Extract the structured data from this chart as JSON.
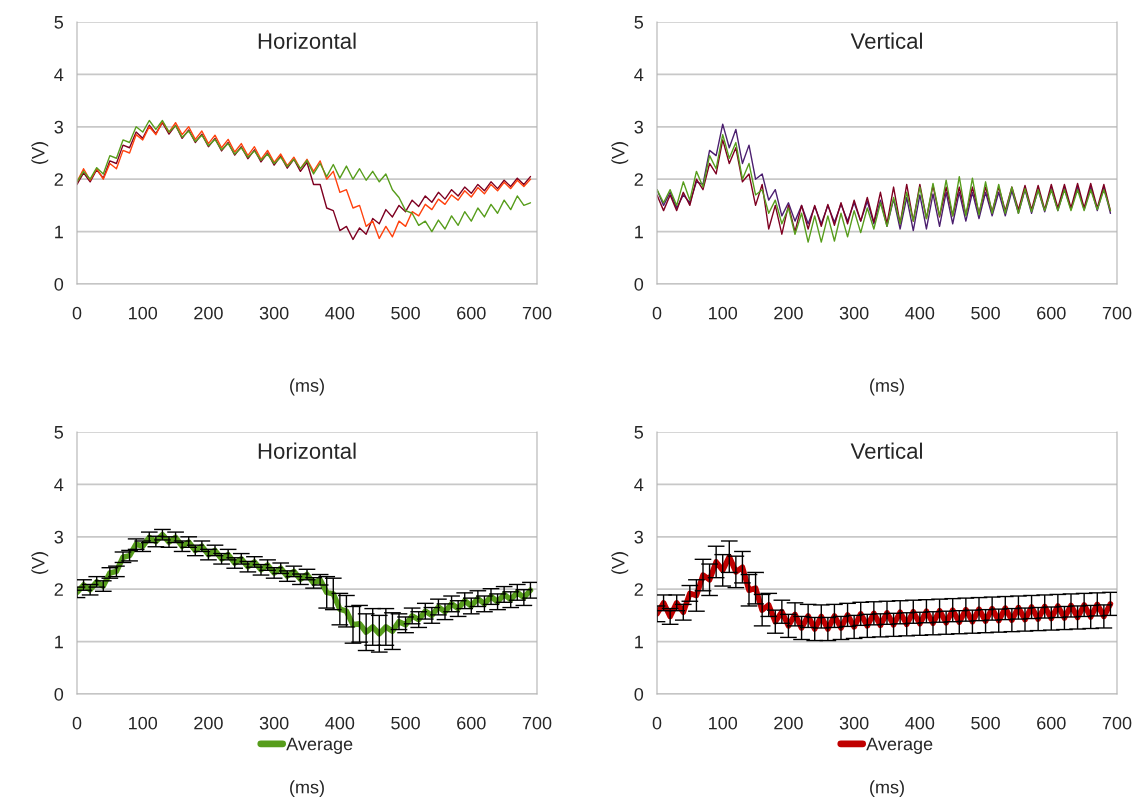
{
  "chart_data": [
    {
      "type": "line",
      "title": "Horizontal",
      "xlabel": "(ms)",
      "ylabel": "(V)",
      "xlim": [
        0,
        700
      ],
      "xticks": [
        0,
        100,
        200,
        300,
        400,
        500,
        600,
        700
      ],
      "ylim": [
        0,
        5
      ],
      "yticks": [
        0,
        1,
        2,
        3,
        4,
        5
      ],
      "grid": "y",
      "legend": false,
      "x": [
        0,
        10,
        20,
        30,
        40,
        50,
        60,
        70,
        80,
        90,
        100,
        110,
        120,
        130,
        140,
        150,
        160,
        170,
        180,
        190,
        200,
        210,
        220,
        230,
        240,
        250,
        260,
        270,
        280,
        290,
        300,
        310,
        320,
        330,
        340,
        350,
        360,
        370,
        380,
        390,
        400,
        410,
        420,
        430,
        440,
        450,
        460,
        470,
        480,
        490,
        500,
        510,
        520,
        530,
        540,
        550,
        560,
        570,
        580,
        590,
        600,
        610,
        620,
        630,
        640,
        650,
        660,
        670,
        680,
        690
      ],
      "series": [
        {
          "color": "#7e0021",
          "values": [
            1.9,
            2.12,
            1.95,
            2.18,
            2.02,
            2.35,
            2.3,
            2.65,
            2.6,
            2.9,
            2.78,
            3.03,
            2.87,
            3.08,
            2.86,
            3.03,
            2.78,
            2.94,
            2.7,
            2.86,
            2.62,
            2.78,
            2.54,
            2.7,
            2.46,
            2.62,
            2.39,
            2.56,
            2.33,
            2.5,
            2.27,
            2.44,
            2.21,
            2.38,
            2.15,
            2.32,
            1.9,
            1.9,
            1.45,
            1.4,
            1.02,
            1.1,
            0.85,
            1.07,
            0.95,
            1.25,
            1.15,
            1.42,
            1.28,
            1.5,
            1.38,
            1.6,
            1.48,
            1.68,
            1.56,
            1.75,
            1.62,
            1.8,
            1.68,
            1.85,
            1.73,
            1.9,
            1.78,
            1.95,
            1.82,
            1.98,
            1.86,
            2.02,
            1.9,
            2.05
          ]
        },
        {
          "color": "#ff420e",
          "values": [
            1.95,
            2.2,
            1.98,
            2.2,
            2.0,
            2.3,
            2.2,
            2.55,
            2.5,
            2.85,
            2.75,
            3.0,
            2.85,
            3.1,
            2.9,
            3.08,
            2.85,
            3.0,
            2.76,
            2.92,
            2.68,
            2.84,
            2.6,
            2.76,
            2.52,
            2.68,
            2.45,
            2.62,
            2.38,
            2.55,
            2.32,
            2.48,
            2.26,
            2.42,
            2.2,
            2.38,
            2.15,
            2.35,
            2.0,
            2.15,
            1.75,
            1.8,
            1.45,
            1.5,
            1.1,
            1.2,
            0.87,
            1.1,
            0.9,
            1.2,
            1.1,
            1.38,
            1.3,
            1.52,
            1.42,
            1.62,
            1.52,
            1.7,
            1.6,
            1.78,
            1.66,
            1.84,
            1.72,
            1.9,
            1.78,
            1.94,
            1.82,
            1.98,
            1.86,
            2.0
          ]
        },
        {
          "color": "#579d1c",
          "values": [
            1.95,
            2.15,
            2.0,
            2.22,
            2.1,
            2.45,
            2.4,
            2.75,
            2.7,
            3.0,
            2.9,
            3.12,
            2.95,
            3.12,
            2.9,
            3.02,
            2.8,
            2.92,
            2.72,
            2.84,
            2.64,
            2.76,
            2.56,
            2.68,
            2.48,
            2.6,
            2.42,
            2.54,
            2.36,
            2.48,
            2.3,
            2.42,
            2.24,
            2.38,
            2.2,
            2.36,
            2.1,
            2.3,
            2.05,
            2.28,
            2.02,
            2.25,
            2.0,
            2.2,
            1.98,
            2.15,
            1.95,
            2.1,
            1.8,
            1.65,
            1.4,
            1.35,
            1.12,
            1.2,
            1.0,
            1.22,
            1.05,
            1.3,
            1.12,
            1.38,
            1.2,
            1.45,
            1.28,
            1.52,
            1.35,
            1.6,
            1.42,
            1.68,
            1.5,
            1.55
          ]
        }
      ]
    },
    {
      "type": "line",
      "title": "Vertical",
      "xlabel": "(ms)",
      "ylabel": "(V)",
      "xlim": [
        0,
        700
      ],
      "xticks": [
        0,
        100,
        200,
        300,
        400,
        500,
        600,
        700
      ],
      "ylim": [
        0,
        5
      ],
      "yticks": [
        0,
        1,
        2,
        3,
        4,
        5
      ],
      "grid": "y",
      "legend": false,
      "x": [
        0,
        10,
        20,
        30,
        40,
        50,
        60,
        70,
        80,
        90,
        100,
        110,
        120,
        130,
        140,
        150,
        160,
        170,
        180,
        190,
        200,
        210,
        220,
        230,
        240,
        250,
        260,
        270,
        280,
        290,
        300,
        310,
        320,
        330,
        340,
        350,
        360,
        370,
        380,
        390,
        400,
        410,
        420,
        430,
        440,
        450,
        460,
        470,
        480,
        490,
        500,
        510,
        520,
        530,
        540,
        550,
        560,
        570,
        580,
        590,
        600,
        610,
        620,
        630,
        640,
        650,
        660,
        670,
        680,
        690
      ],
      "series": [
        {
          "color": "#4b1f6f",
          "values": [
            1.8,
            1.5,
            1.75,
            1.45,
            1.7,
            1.55,
            1.95,
            1.9,
            2.55,
            2.45,
            3.05,
            2.6,
            2.95,
            2.3,
            2.65,
            2.0,
            2.1,
            1.6,
            1.8,
            1.3,
            1.55,
            1.2,
            1.5,
            1.15,
            1.48,
            1.15,
            1.5,
            1.18,
            1.52,
            1.2,
            1.55,
            1.2,
            1.58,
            1.15,
            1.6,
            1.1,
            1.62,
            1.05,
            1.65,
            1.02,
            1.7,
            1.05,
            1.72,
            1.1,
            1.75,
            1.15,
            1.75,
            1.2,
            1.75,
            1.25,
            1.75,
            1.3,
            1.75,
            1.3,
            1.78,
            1.35,
            1.8,
            1.35,
            1.8,
            1.38,
            1.82,
            1.4,
            1.82,
            1.42,
            1.85,
            1.42,
            1.85,
            1.4,
            1.85,
            1.35
          ]
        },
        {
          "color": "#7e0021",
          "values": [
            1.7,
            1.4,
            1.7,
            1.4,
            1.75,
            1.5,
            2.0,
            1.8,
            2.3,
            2.1,
            2.75,
            2.3,
            2.6,
            1.95,
            2.1,
            1.5,
            1.9,
            1.05,
            1.5,
            0.95,
            1.5,
            1.0,
            1.5,
            1.05,
            1.5,
            1.1,
            1.52,
            1.12,
            1.55,
            1.15,
            1.6,
            1.2,
            1.65,
            1.18,
            1.75,
            1.15,
            1.85,
            1.15,
            1.9,
            1.2,
            1.9,
            1.25,
            1.88,
            1.28,
            1.85,
            1.3,
            1.85,
            1.32,
            1.85,
            1.35,
            1.85,
            1.38,
            1.85,
            1.4,
            1.85,
            1.42,
            1.88,
            1.42,
            1.88,
            1.42,
            1.9,
            1.45,
            1.9,
            1.45,
            1.92,
            1.45,
            1.92,
            1.45,
            1.9,
            1.4
          ]
        },
        {
          "color": "#579d1c",
          "values": [
            1.8,
            1.55,
            1.8,
            1.5,
            1.95,
            1.6,
            2.15,
            1.85,
            2.45,
            2.2,
            2.85,
            2.4,
            2.7,
            2.0,
            2.3,
            1.7,
            1.8,
            1.35,
            1.6,
            1.15,
            1.45,
            0.95,
            1.35,
            0.8,
            1.3,
            0.8,
            1.3,
            0.82,
            1.35,
            0.9,
            1.4,
            0.98,
            1.45,
            1.05,
            1.55,
            1.1,
            1.65,
            1.15,
            1.75,
            1.2,
            1.85,
            1.25,
            1.92,
            1.3,
            1.98,
            1.3,
            2.05,
            1.3,
            2.02,
            1.32,
            1.95,
            1.35,
            1.9,
            1.35,
            1.85,
            1.35,
            1.82,
            1.38,
            1.8,
            1.4,
            1.8,
            1.4,
            1.8,
            1.4,
            1.8,
            1.4,
            1.8,
            1.42,
            1.8,
            1.4
          ]
        }
      ]
    },
    {
      "type": "line",
      "title": "Horizontal",
      "xlabel": "(ms)",
      "ylabel": "(V)",
      "xlim": [
        0,
        700
      ],
      "xticks": [
        0,
        100,
        200,
        300,
        400,
        500,
        600,
        700
      ],
      "ylim": [
        0,
        5
      ],
      "yticks": [
        0,
        1,
        2,
        3,
        4,
        5
      ],
      "grid": "y",
      "legend": "bottom",
      "x": [
        0,
        10,
        20,
        30,
        40,
        50,
        60,
        70,
        80,
        90,
        100,
        110,
        120,
        130,
        140,
        150,
        160,
        170,
        180,
        190,
        200,
        210,
        220,
        230,
        240,
        250,
        260,
        270,
        280,
        290,
        300,
        310,
        320,
        330,
        340,
        350,
        360,
        370,
        380,
        390,
        400,
        410,
        420,
        430,
        440,
        450,
        460,
        470,
        480,
        490,
        500,
        510,
        520,
        530,
        540,
        550,
        560,
        570,
        580,
        590,
        600,
        610,
        620,
        630,
        640,
        650,
        660,
        670,
        680,
        690
      ],
      "series": [
        {
          "name": "Average",
          "color": "#579d1c",
          "values": [
            1.94,
            2.08,
            1.99,
            2.14,
            2.06,
            2.31,
            2.34,
            2.61,
            2.64,
            2.86,
            2.82,
            2.99,
            2.91,
            3.04,
            2.9,
            2.99,
            2.82,
            2.9,
            2.74,
            2.82,
            2.66,
            2.74,
            2.58,
            2.66,
            2.5,
            2.58,
            2.43,
            2.52,
            2.37,
            2.46,
            2.31,
            2.4,
            2.25,
            2.34,
            2.19,
            2.28,
            2.12,
            2.18,
            1.94,
            1.91,
            1.62,
            1.58,
            1.32,
            1.34,
            1.18,
            1.28,
            1.15,
            1.28,
            1.2,
            1.38,
            1.32,
            1.49,
            1.42,
            1.58,
            1.5,
            1.66,
            1.57,
            1.72,
            1.63,
            1.78,
            1.68,
            1.82,
            1.72,
            1.86,
            1.76,
            1.9,
            1.8,
            1.94,
            1.84,
            1.98
          ],
          "errors": [
            0.1,
            0.1,
            0.1,
            0.1,
            0.1,
            0.1,
            0.1,
            0.1,
            0.1,
            0.1,
            0.1,
            0.1,
            0.1,
            0.1,
            0.1,
            0.1,
            0.1,
            0.1,
            0.1,
            0.1,
            0.1,
            0.1,
            0.1,
            0.1,
            0.1,
            0.1,
            0.1,
            0.1,
            0.1,
            0.1,
            0.1,
            0.1,
            0.1,
            0.1,
            0.1,
            0.1,
            0.1,
            0.1,
            0.3,
            0.3,
            0.3,
            0.3,
            0.35,
            0.35,
            0.35,
            0.35,
            0.35,
            0.35,
            0.35,
            0.15,
            0.15,
            0.15,
            0.15,
            0.15,
            0.15,
            0.15,
            0.15,
            0.15,
            0.15,
            0.15,
            0.15,
            0.15,
            0.15,
            0.15,
            0.15,
            0.15,
            0.15,
            0.15,
            0.15,
            0.15
          ]
        }
      ]
    },
    {
      "type": "line",
      "title": "Vertical",
      "xlabel": "(ms)",
      "ylabel": "(V)",
      "xlim": [
        0,
        700
      ],
      "xticks": [
        0,
        100,
        200,
        300,
        400,
        500,
        600,
        700
      ],
      "ylim": [
        0,
        5
      ],
      "yticks": [
        0,
        1,
        2,
        3,
        4,
        5
      ],
      "grid": "y",
      "legend": "bottom",
      "x": [
        0,
        10,
        20,
        30,
        40,
        50,
        60,
        70,
        80,
        90,
        100,
        110,
        120,
        130,
        140,
        150,
        160,
        170,
        180,
        190,
        200,
        210,
        220,
        230,
        240,
        250,
        260,
        270,
        280,
        290,
        300,
        310,
        320,
        330,
        340,
        350,
        360,
        370,
        380,
        390,
        400,
        410,
        420,
        430,
        440,
        450,
        460,
        470,
        480,
        490,
        500,
        510,
        520,
        530,
        540,
        550,
        560,
        570,
        580,
        590,
        600,
        610,
        620,
        630,
        640,
        650,
        660,
        670,
        680,
        690
      ],
      "series": [
        {
          "name": "Average",
          "color": "#c00000",
          "values": [
            1.53,
            1.74,
            1.48,
            1.74,
            1.56,
            1.92,
            1.88,
            2.27,
            2.18,
            2.52,
            2.36,
            2.62,
            2.33,
            2.42,
            1.98,
            2.02,
            1.6,
            1.7,
            1.38,
            1.57,
            1.3,
            1.52,
            1.26,
            1.49,
            1.24,
            1.48,
            1.24,
            1.49,
            1.26,
            1.51,
            1.28,
            1.53,
            1.3,
            1.54,
            1.31,
            1.55,
            1.32,
            1.56,
            1.33,
            1.57,
            1.34,
            1.58,
            1.35,
            1.59,
            1.36,
            1.6,
            1.37,
            1.61,
            1.38,
            1.62,
            1.39,
            1.63,
            1.4,
            1.64,
            1.41,
            1.65,
            1.42,
            1.66,
            1.43,
            1.67,
            1.44,
            1.68,
            1.45,
            1.69,
            1.46,
            1.7,
            1.47,
            1.71,
            1.48,
            1.72
          ],
          "errors": [
            0.15,
            0.15,
            0.15,
            0.15,
            0.15,
            0.15,
            0.3,
            0.3,
            0.3,
            0.3,
            0.3,
            0.3,
            0.3,
            0.3,
            0.3,
            0.3,
            0.3,
            0.22,
            0.22,
            0.22,
            0.22,
            0.22,
            0.22,
            0.22,
            0.22,
            0.22,
            0.22,
            0.22,
            0.22,
            0.22,
            0.22,
            0.22,
            0.22,
            0.22,
            0.22,
            0.22,
            0.22,
            0.22,
            0.22,
            0.22,
            0.22,
            0.22,
            0.22,
            0.22,
            0.22,
            0.22,
            0.22,
            0.22,
            0.22,
            0.22,
            0.22,
            0.22,
            0.22,
            0.22,
            0.22,
            0.22,
            0.22,
            0.22,
            0.22,
            0.22,
            0.22,
            0.22,
            0.22,
            0.22,
            0.22,
            0.22,
            0.22,
            0.22,
            0.22,
            0.22
          ]
        }
      ]
    }
  ]
}
